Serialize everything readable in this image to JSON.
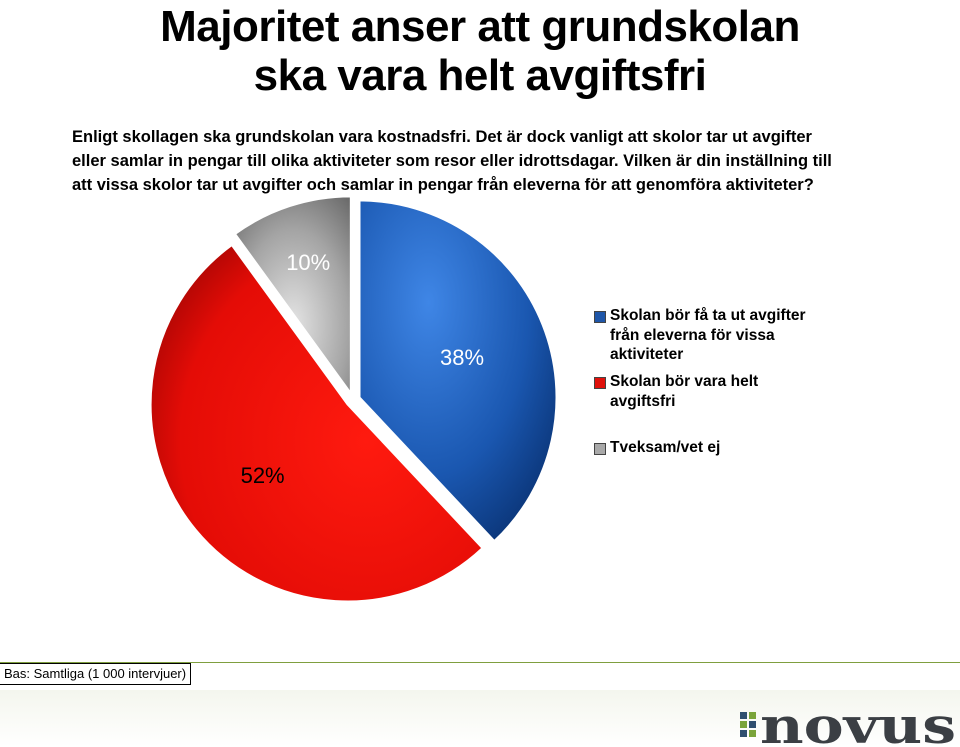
{
  "header": {
    "title_line1": "Majoritet anser att grundskolan",
    "title_line2": "ska vara helt avgiftsfri",
    "question": "Enligt skollagen ska grundskolan vara kostnadsfri. Det är dock vanligt att skolor tar ut avgifter\neller samlar in pengar till olika aktiviteter som resor eller idrottsdagar. Vilken är din inställning till\natt vissa skolor tar ut avgifter och samlar in pengar från eleverna för  att genomföra aktiviteter?"
  },
  "chart_data": {
    "type": "pie",
    "title": "",
    "slices": [
      {
        "name": "Skolan bör få ta ut avgifter från eleverna för vissa aktiviteter",
        "value": 38,
        "label": "38%",
        "color": "#1f56a8"
      },
      {
        "name": "Skolan bör vara helt avgiftsfri",
        "value": 52,
        "label": "52%",
        "color": "#e0110b"
      },
      {
        "name": "Tveksam/vet ej",
        "value": 10,
        "label": "10%",
        "color": "#a9a9a9"
      }
    ],
    "legend_position": "right",
    "exploded": true
  },
  "legend": [
    {
      "label": "Skolan bör få ta ut avgifter från eleverna för vissa aktiviteter",
      "color": "#1f56a8"
    },
    {
      "label": "Skolan bör vara helt avgiftsfri",
      "color": "#e0110b"
    },
    {
      "label": "Tveksam/vet ej",
      "color": "#a9a9a9"
    }
  ],
  "footer": {
    "base_note": "Bas: Samtliga (1 000 intervjuer)",
    "logo_text": "novus"
  }
}
